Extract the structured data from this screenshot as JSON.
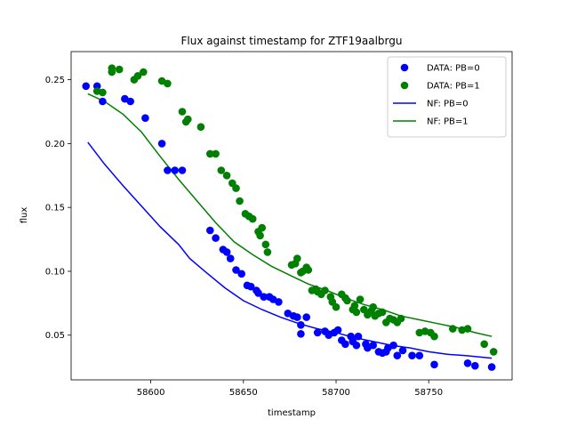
{
  "chart_data": {
    "type": "scatter",
    "title": "Flux against timestamp for ZTF19aalbrgu",
    "xlabel": "timestamp",
    "ylabel": "flux",
    "xlim": [
      58557,
      58795
    ],
    "ylim": [
      0.015,
      0.272
    ],
    "xticks": [
      58600,
      58650,
      58700,
      58750
    ],
    "yticks": [
      0.05,
      0.1,
      0.15,
      0.2,
      0.25
    ],
    "ytick_labels": [
      "0.05",
      "0.10",
      "0.15",
      "0.20",
      "0.25"
    ],
    "grid": false,
    "legend_position": "top-right",
    "series": [
      {
        "name": "DATA: PB=0",
        "kind": "points",
        "color": "#0000ff",
        "points": [
          [
            58565,
            0.245
          ],
          [
            58571,
            0.245
          ],
          [
            58574,
            0.233
          ],
          [
            58586,
            0.235
          ],
          [
            58589,
            0.233
          ],
          [
            58597,
            0.22
          ],
          [
            58606,
            0.2
          ],
          [
            58609,
            0.179
          ],
          [
            58613,
            0.179
          ],
          [
            58617,
            0.179
          ],
          [
            58632,
            0.132
          ],
          [
            58635,
            0.126
          ],
          [
            58639,
            0.117
          ],
          [
            58641,
            0.115
          ],
          [
            58643,
            0.11
          ],
          [
            58646,
            0.101
          ],
          [
            58649,
            0.098
          ],
          [
            58652,
            0.089
          ],
          [
            58654,
            0.088
          ],
          [
            58657,
            0.085
          ],
          [
            58658,
            0.083
          ],
          [
            58661,
            0.08
          ],
          [
            58664,
            0.08
          ],
          [
            58666,
            0.078
          ],
          [
            58669,
            0.076
          ],
          [
            58674,
            0.067
          ],
          [
            58677,
            0.065
          ],
          [
            58679,
            0.064
          ],
          [
            58681,
            0.051
          ],
          [
            58681,
            0.058
          ],
          [
            58684,
            0.064
          ],
          [
            58690,
            0.052
          ],
          [
            58694,
            0.053
          ],
          [
            58696,
            0.05
          ],
          [
            58699,
            0.052
          ],
          [
            58701,
            0.054
          ],
          [
            58703,
            0.046
          ],
          [
            58705,
            0.043
          ],
          [
            58708,
            0.049
          ],
          [
            58709,
            0.045
          ],
          [
            58711,
            0.042
          ],
          [
            58712,
            0.049
          ],
          [
            58716,
            0.043
          ],
          [
            58717,
            0.04
          ],
          [
            58720,
            0.042
          ],
          [
            58723,
            0.037
          ],
          [
            58725,
            0.036
          ],
          [
            58727,
            0.037
          ],
          [
            58728,
            0.04
          ],
          [
            58731,
            0.042
          ],
          [
            58733,
            0.034
          ],
          [
            58736,
            0.038
          ],
          [
            58741,
            0.034
          ],
          [
            58745,
            0.034
          ],
          [
            58753,
            0.027
          ],
          [
            58771,
            0.028
          ],
          [
            58775,
            0.026
          ],
          [
            58784,
            0.025
          ]
        ]
      },
      {
        "name": "DATA: PB=1",
        "kind": "points",
        "color": "#008000",
        "points": [
          [
            58571,
            0.241
          ],
          [
            58574,
            0.24
          ],
          [
            58579,
            0.256
          ],
          [
            58579,
            0.259
          ],
          [
            58583,
            0.258
          ],
          [
            58591,
            0.25
          ],
          [
            58593,
            0.253
          ],
          [
            58596,
            0.256
          ],
          [
            58606,
            0.249
          ],
          [
            58609,
            0.247
          ],
          [
            58617,
            0.225
          ],
          [
            58619,
            0.217
          ],
          [
            58620,
            0.219
          ],
          [
            58627,
            0.213
          ],
          [
            58632,
            0.192
          ],
          [
            58635,
            0.192
          ],
          [
            58638,
            0.179
          ],
          [
            58641,
            0.175
          ],
          [
            58644,
            0.169
          ],
          [
            58646,
            0.165
          ],
          [
            58648,
            0.155
          ],
          [
            58651,
            0.145
          ],
          [
            58653,
            0.143
          ],
          [
            58655,
            0.141
          ],
          [
            58658,
            0.131
          ],
          [
            58659,
            0.128
          ],
          [
            58660,
            0.134
          ],
          [
            58662,
            0.121
          ],
          [
            58663,
            0.115
          ],
          [
            58676,
            0.105
          ],
          [
            58678,
            0.106
          ],
          [
            58679,
            0.11
          ],
          [
            58681,
            0.099
          ],
          [
            58682,
            0.1
          ],
          [
            58684,
            0.103
          ],
          [
            58685,
            0.101
          ],
          [
            58687,
            0.085
          ],
          [
            58689,
            0.086
          ],
          [
            58690,
            0.084
          ],
          [
            58692,
            0.082
          ],
          [
            58694,
            0.085
          ],
          [
            58697,
            0.08
          ],
          [
            58698,
            0.076
          ],
          [
            58700,
            0.072
          ],
          [
            58703,
            0.082
          ],
          [
            58705,
            0.079
          ],
          [
            58706,
            0.077
          ],
          [
            58709,
            0.07
          ],
          [
            58710,
            0.073
          ],
          [
            58711,
            0.068
          ],
          [
            58713,
            0.078
          ],
          [
            58715,
            0.07
          ],
          [
            58717,
            0.066
          ],
          [
            58719,
            0.069
          ],
          [
            58720,
            0.072
          ],
          [
            58721,
            0.065
          ],
          [
            58723,
            0.067
          ],
          [
            58725,
            0.068
          ],
          [
            58727,
            0.06
          ],
          [
            58729,
            0.063
          ],
          [
            58731,
            0.062
          ],
          [
            58733,
            0.06
          ],
          [
            58735,
            0.063
          ],
          [
            58745,
            0.052
          ],
          [
            58748,
            0.053
          ],
          [
            58751,
            0.052
          ],
          [
            58753,
            0.049
          ],
          [
            58763,
            0.055
          ],
          [
            58768,
            0.054
          ],
          [
            58771,
            0.055
          ],
          [
            58780,
            0.043
          ],
          [
            58785,
            0.037
          ]
        ]
      },
      {
        "name": "NF: PB=0",
        "kind": "line",
        "color": "#0000ff",
        "points": [
          [
            58566,
            0.201
          ],
          [
            58575,
            0.184
          ],
          [
            58585,
            0.167
          ],
          [
            58595,
            0.151
          ],
          [
            58605,
            0.135
          ],
          [
            58615,
            0.121
          ],
          [
            58621,
            0.11
          ],
          [
            58630,
            0.099
          ],
          [
            58640,
            0.087
          ],
          [
            58650,
            0.077
          ],
          [
            58660,
            0.07
          ],
          [
            58670,
            0.064
          ],
          [
            58680,
            0.059
          ],
          [
            58690,
            0.055
          ],
          [
            58700,
            0.052
          ],
          [
            58710,
            0.048
          ],
          [
            58720,
            0.045
          ],
          [
            58730,
            0.042
          ],
          [
            58740,
            0.04
          ],
          [
            58750,
            0.037
          ],
          [
            58760,
            0.035
          ],
          [
            58770,
            0.034
          ],
          [
            58784,
            0.032
          ]
        ]
      },
      {
        "name": "NF: PB=1",
        "kind": "line",
        "color": "#008000",
        "points": [
          [
            58566,
            0.239
          ],
          [
            58575,
            0.233
          ],
          [
            58585,
            0.223
          ],
          [
            58595,
            0.209
          ],
          [
            58605,
            0.19
          ],
          [
            58615,
            0.172
          ],
          [
            58625,
            0.155
          ],
          [
            58635,
            0.138
          ],
          [
            58645,
            0.123
          ],
          [
            58655,
            0.113
          ],
          [
            58665,
            0.104
          ],
          [
            58675,
            0.097
          ],
          [
            58685,
            0.09
          ],
          [
            58695,
            0.085
          ],
          [
            58705,
            0.079
          ],
          [
            58715,
            0.074
          ],
          [
            58725,
            0.07
          ],
          [
            58735,
            0.065
          ],
          [
            58745,
            0.062
          ],
          [
            58755,
            0.059
          ],
          [
            58765,
            0.056
          ],
          [
            58775,
            0.052
          ],
          [
            58784,
            0.049
          ]
        ]
      }
    ]
  }
}
